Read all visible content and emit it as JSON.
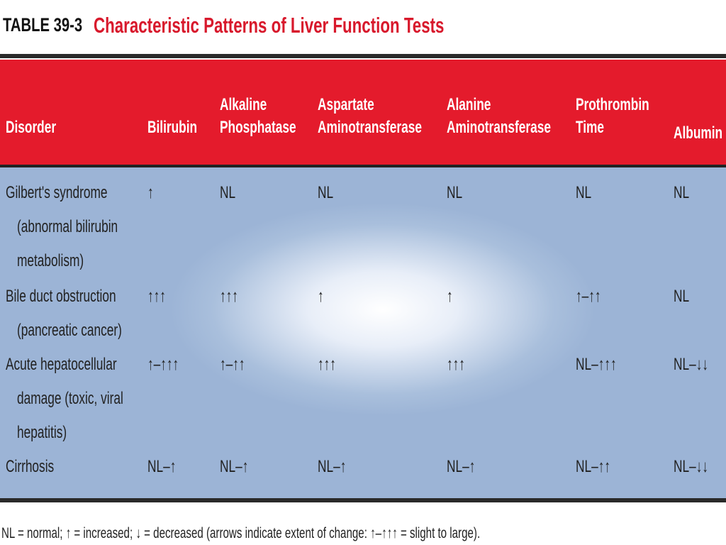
{
  "header": {
    "label": "TABLE 39-3",
    "title": "Characteristic Patterns of Liver Function Tests"
  },
  "table": {
    "columns": [
      [
        "Disorder"
      ],
      [
        "Bilirubin"
      ],
      [
        "Alkaline",
        "Phosphatase"
      ],
      [
        "Aspartate",
        "Aminotransferase"
      ],
      [
        "Alanine",
        "Aminotransferase"
      ],
      [
        "Prothrombin",
        "Time"
      ],
      [
        "Albumin"
      ]
    ],
    "rows": [
      [
        [
          "Gilbert's syndrome",
          "(abnormal bilirubin",
          "metabolism)"
        ],
        [
          "↑"
        ],
        [
          "NL"
        ],
        [
          "NL"
        ],
        [
          "NL"
        ],
        [
          "NL"
        ],
        [
          "NL"
        ]
      ],
      [
        [
          "Bile duct obstruction",
          "(pancreatic cancer)"
        ],
        [
          "↑↑↑"
        ],
        [
          "↑↑↑"
        ],
        [
          "↑"
        ],
        [
          "↑"
        ],
        [
          "↑–↑↑"
        ],
        [
          "NL"
        ]
      ],
      [
        [
          "Acute hepatocellular",
          "damage (toxic, viral",
          "hepatitis)"
        ],
        [
          "↑–↑↑↑"
        ],
        [
          "↑–↑↑"
        ],
        [
          "↑↑↑"
        ],
        [
          "↑↑↑"
        ],
        [
          "NL–↑↑↑"
        ],
        [
          "NL–↓↓"
        ]
      ],
      [
        [
          "Cirrhosis"
        ],
        [
          "NL–↑"
        ],
        [
          "NL–↑"
        ],
        [
          "NL–↑"
        ],
        [
          "NL–↑"
        ],
        [
          "NL–↑↑"
        ],
        [
          "NL–↓↓"
        ]
      ]
    ]
  },
  "footnote": "NL = normal; ↑ = increased; ↓ = decreased (arrows indicate extent of change: ↑–↑↑↑ = slight to large)."
}
